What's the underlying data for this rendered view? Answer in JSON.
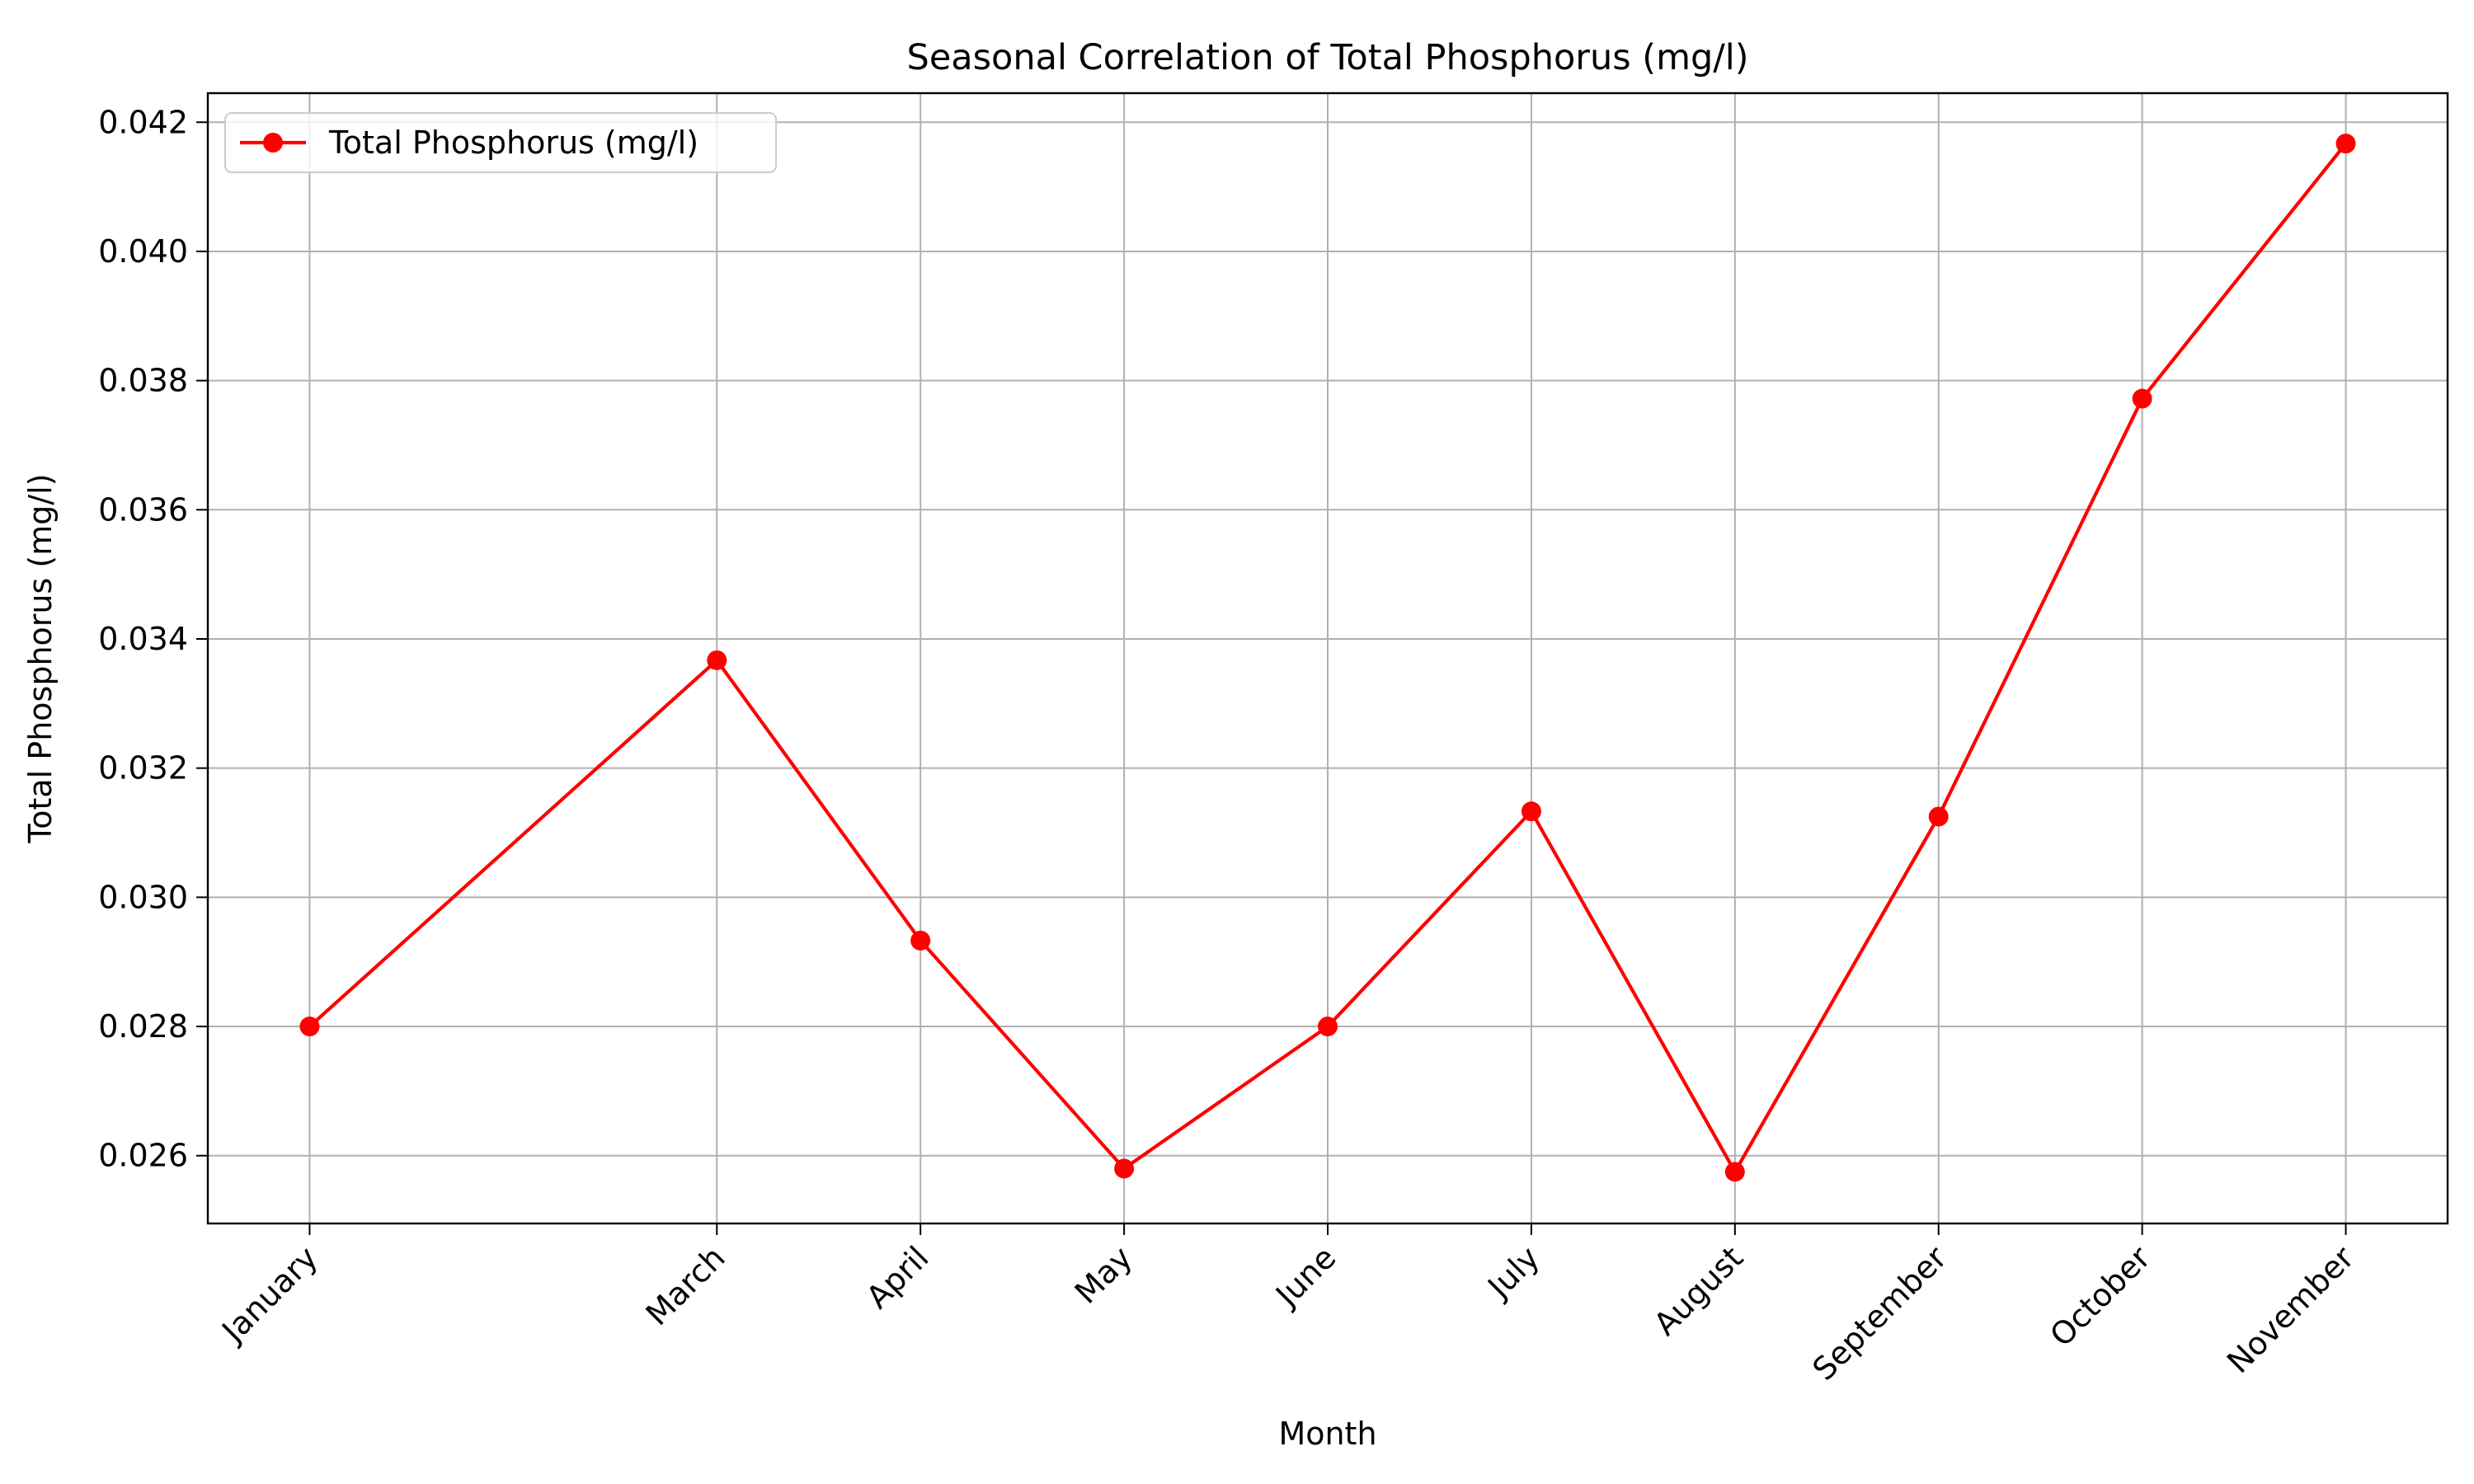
{
  "chart_data": {
    "type": "line",
    "title": "Seasonal Correlation of Total Phosphorus (mg/l)",
    "xlabel": "Month",
    "ylabel": "Total Phosphorus (mg/l)",
    "x": [
      1,
      3,
      4,
      5,
      6,
      7,
      8,
      9,
      10,
      11
    ],
    "categories": [
      "January",
      "March",
      "April",
      "May",
      "June",
      "July",
      "August",
      "September",
      "October",
      "November"
    ],
    "series": [
      {
        "name": "Total Phosphorus (mg/l)",
        "values": [
          0.028,
          0.03367,
          0.02933,
          0.0258,
          0.028,
          0.03133,
          0.02575,
          0.03125,
          0.03772,
          0.04167
        ],
        "color": "#ff0000",
        "marker": "circle"
      }
    ],
    "xlim": [
      0.5,
      11.5
    ],
    "ylim": [
      0.02495,
      0.04245
    ],
    "yticks": [
      "0.026",
      "0.028",
      "0.030",
      "0.032",
      "0.034",
      "0.036",
      "0.038",
      "0.040",
      "0.042"
    ],
    "grid": true,
    "legend_position": "upper-left",
    "x_tick_rotation": "45deg"
  }
}
